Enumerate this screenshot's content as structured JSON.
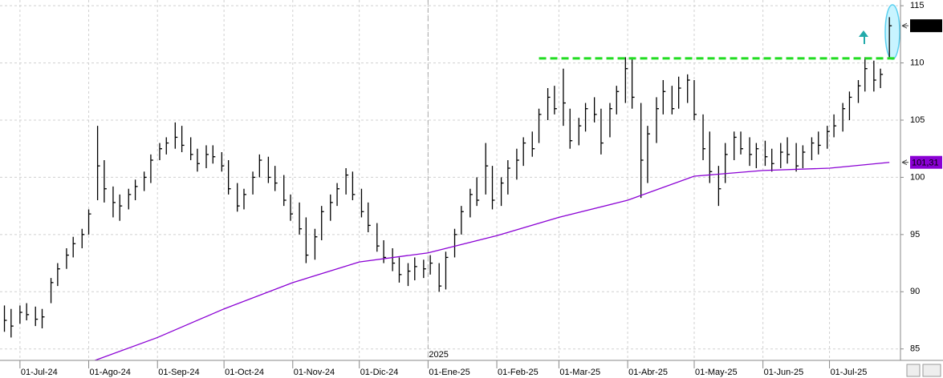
{
  "chart_data": {
    "type": "ohlc",
    "x": [
      "2024-06-24",
      "2024-06-27",
      "2024-07-01",
      "2024-07-04",
      "2024-07-08",
      "2024-07-11",
      "2024-07-15",
      "2024-07-18",
      "2024-07-22",
      "2024-07-25",
      "2024-07-29",
      "2024-08-01",
      "2024-08-05",
      "2024-08-08",
      "2024-08-12",
      "2024-08-15",
      "2024-08-19",
      "2024-08-22",
      "2024-08-26",
      "2024-08-29",
      "2024-09-02",
      "2024-09-05",
      "2024-09-09",
      "2024-09-12",
      "2024-09-16",
      "2024-09-19",
      "2024-09-23",
      "2024-09-26",
      "2024-09-30",
      "2024-10-03",
      "2024-10-07",
      "2024-10-10",
      "2024-10-14",
      "2024-10-17",
      "2024-10-21",
      "2024-10-24",
      "2024-10-28",
      "2024-10-31",
      "2024-11-04",
      "2024-11-07",
      "2024-11-11",
      "2024-11-14",
      "2024-11-18",
      "2024-11-21",
      "2024-11-25",
      "2024-11-28",
      "2024-12-02",
      "2024-12-05",
      "2024-12-09",
      "2024-12-12",
      "2024-12-16",
      "2024-12-19",
      "2024-12-23",
      "2024-12-26",
      "2024-12-30",
      "2025-01-02",
      "2025-01-06",
      "2025-01-09",
      "2025-01-13",
      "2025-01-16",
      "2025-01-20",
      "2025-01-23",
      "2025-01-27",
      "2025-01-30",
      "2025-02-03",
      "2025-02-06",
      "2025-02-10",
      "2025-02-13",
      "2025-02-17",
      "2025-02-20",
      "2025-02-24",
      "2025-02-27",
      "2025-03-03",
      "2025-03-06",
      "2025-03-10",
      "2025-03-13",
      "2025-03-17",
      "2025-03-20",
      "2025-03-24",
      "2025-03-27",
      "2025-03-31",
      "2025-04-03",
      "2025-04-07",
      "2025-04-10",
      "2025-04-14",
      "2025-04-17",
      "2025-04-21",
      "2025-04-24",
      "2025-04-28",
      "2025-05-01",
      "2025-05-05",
      "2025-05-08",
      "2025-05-12",
      "2025-05-15",
      "2025-05-19",
      "2025-05-22",
      "2025-05-26",
      "2025-05-29",
      "2025-06-02",
      "2025-06-05",
      "2025-06-09",
      "2025-06-12",
      "2025-06-16",
      "2025-06-19",
      "2025-06-23",
      "2025-06-26",
      "2025-06-30",
      "2025-07-03",
      "2025-07-07",
      "2025-07-10",
      "2025-07-14",
      "2025-07-17",
      "2025-07-21",
      "2025-07-24",
      "2025-07-28"
    ],
    "high": [
      88.8,
      88.5,
      88.8,
      89.0,
      88.7,
      88.5,
      91.2,
      92.5,
      93.8,
      94.8,
      95.5,
      97.2,
      104.5,
      101.5,
      99.2,
      98.5,
      99.0,
      99.8,
      100.5,
      102.0,
      103.0,
      103.5,
      104.8,
      104.5,
      103.5,
      102.5,
      102.8,
      102.8,
      102.2,
      101.5,
      99.5,
      99.0,
      100.5,
      102.0,
      101.8,
      101.0,
      100.2,
      98.5,
      97.8,
      96.5,
      95.5,
      97.5,
      98.5,
      99.5,
      100.8,
      100.5,
      99.0,
      97.8,
      96.0,
      94.5,
      93.8,
      93.0,
      92.5,
      93.0,
      92.8,
      93.2,
      92.5,
      93.5,
      95.5,
      97.5,
      99.0,
      100.0,
      103.0,
      101.0,
      100.0,
      101.5,
      102.5,
      103.5,
      104.0,
      106.0,
      107.8,
      108.0,
      109.5,
      106.0,
      105.2,
      106.5,
      107.0,
      106.0,
      106.5,
      108.0,
      110.5,
      110.5,
      106.5,
      104.5,
      107.0,
      108.5,
      108.0,
      108.8,
      109.0,
      108.5,
      105.5,
      104.0,
      101.0,
      103.0,
      104.0,
      104.0,
      103.5,
      103.0,
      103.2,
      102.5,
      103.0,
      103.5,
      103.0,
      102.8,
      103.5,
      104.0,
      104.5,
      105.5,
      106.5,
      107.5,
      108.5,
      110.5,
      110.2,
      109.5,
      114.0
    ],
    "low": [
      86.5,
      86.0,
      87.2,
      87.5,
      87.0,
      86.8,
      89.0,
      90.5,
      92.0,
      93.0,
      93.8,
      95.0,
      98.0,
      97.8,
      96.5,
      96.2,
      97.2,
      98.0,
      98.8,
      99.5,
      101.5,
      102.0,
      102.5,
      102.2,
      101.5,
      100.5,
      100.8,
      101.2,
      100.5,
      98.5,
      97.0,
      97.2,
      98.5,
      100.0,
      99.5,
      98.8,
      97.5,
      96.2,
      95.0,
      92.5,
      92.8,
      94.5,
      96.2,
      97.5,
      98.5,
      98.0,
      96.5,
      95.2,
      93.5,
      92.5,
      91.8,
      90.8,
      90.5,
      91.0,
      91.2,
      91.5,
      90.0,
      90.2,
      93.0,
      95.0,
      96.5,
      97.5,
      98.5,
      97.2,
      97.5,
      98.5,
      99.8,
      101.0,
      101.8,
      103.0,
      105.0,
      105.5,
      104.5,
      102.5,
      102.8,
      104.0,
      104.8,
      102.0,
      103.5,
      105.5,
      106.5,
      106.0,
      98.2,
      99.5,
      103.0,
      105.5,
      105.5,
      106.0,
      106.5,
      105.0,
      101.5,
      99.5,
      97.5,
      99.5,
      101.5,
      102.0,
      101.0,
      100.8,
      101.0,
      100.5,
      100.8,
      101.2,
      100.5,
      100.8,
      101.5,
      102.0,
      102.5,
      103.5,
      104.0,
      105.0,
      106.5,
      107.5,
      107.5,
      107.8,
      110.5
    ],
    "close": [
      87.5,
      87.0,
      88.2,
      88.0,
      87.6,
      87.8,
      90.8,
      92.0,
      93.2,
      94.2,
      95.0,
      96.8,
      101.0,
      99.0,
      97.8,
      97.5,
      98.5,
      99.2,
      100.0,
      101.5,
      102.5,
      103.0,
      103.5,
      102.8,
      102.0,
      101.2,
      102.0,
      101.8,
      101.0,
      99.0,
      97.5,
      98.5,
      100.0,
      101.5,
      100.0,
      99.5,
      98.0,
      96.8,
      95.5,
      93.2,
      94.8,
      97.0,
      97.8,
      99.0,
      100.2,
      98.5,
      97.0,
      95.8,
      94.0,
      93.0,
      92.5,
      91.5,
      91.8,
      92.2,
      92.0,
      92.5,
      90.5,
      93.0,
      95.0,
      97.0,
      98.5,
      98.0,
      101.0,
      98.0,
      99.5,
      100.8,
      101.5,
      103.0,
      102.5,
      105.5,
      107.0,
      106.0,
      106.5,
      103.2,
      104.5,
      106.0,
      105.5,
      103.0,
      106.0,
      107.5,
      109.5,
      107.0,
      101.5,
      103.8,
      106.0,
      107.5,
      106.0,
      107.8,
      108.5,
      105.5,
      102.5,
      100.5,
      99.0,
      102.0,
      103.5,
      102.5,
      102.0,
      102.5,
      101.8,
      101.2,
      102.2,
      102.0,
      101.0,
      102.2,
      103.0,
      102.8,
      104.0,
      104.5,
      106.0,
      107.0,
      108.0,
      109.5,
      108.5,
      109.0,
      113.25
    ],
    "color": "#000000",
    "ma": {
      "x": [
        "2024-08-01",
        "2024-09-01",
        "2024-10-01",
        "2024-11-01",
        "2024-12-01",
        "2025-01-01",
        "2025-02-01",
        "2025-03-01",
        "2025-04-01",
        "2025-05-01",
        "2025-06-01",
        "2025-07-01",
        "2025-07-28"
      ],
      "values": [
        83.8,
        86.0,
        88.5,
        90.8,
        92.6,
        93.4,
        94.9,
        96.5,
        98.0,
        100.1,
        100.6,
        100.8,
        101.31
      ],
      "color": "#8a00d4"
    },
    "price_labels": [
      {
        "value": 113.25,
        "label": "113,25",
        "color": "#000000",
        "text": "#ffffff"
      },
      {
        "value": 101.31,
        "label": "101,31",
        "color": "#8a00d4",
        "text": "#ffffff"
      }
    ],
    "resistance": {
      "value": 110.4,
      "start": "2025-02-20",
      "color": "#22dd22"
    },
    "year_marker": {
      "date": "2025-01-01",
      "label": "2025"
    },
    "xlim": [
      "2024-06-22",
      "2025-08-02"
    ],
    "ylim": [
      84,
      115.5
    ],
    "yticks": [
      85,
      90,
      95,
      100,
      105,
      110,
      115
    ],
    "xticks": [
      {
        "value": "2024-07-01",
        "label": "01-Jul-24"
      },
      {
        "value": "2024-08-01",
        "label": "01-Ago-24"
      },
      {
        "value": "2024-09-01",
        "label": "01-Sep-24"
      },
      {
        "value": "2024-10-01",
        "label": "01-Oct-24"
      },
      {
        "value": "2024-11-01",
        "label": "01-Nov-24"
      },
      {
        "value": "2024-12-01",
        "label": "01-Dic-24"
      },
      {
        "value": "2025-01-01",
        "label": "01-Ene-25"
      },
      {
        "value": "2025-02-01",
        "label": "01-Feb-25"
      },
      {
        "value": "2025-03-01",
        "label": "01-Mar-25"
      },
      {
        "value": "2025-04-01",
        "label": "01-Abr-25"
      },
      {
        "value": "2025-05-01",
        "label": "01-May-25"
      },
      {
        "value": "2025-06-01",
        "label": "01-Jun-25"
      },
      {
        "value": "2025-07-01",
        "label": "01-Jul-25"
      }
    ],
    "grid": true
  }
}
